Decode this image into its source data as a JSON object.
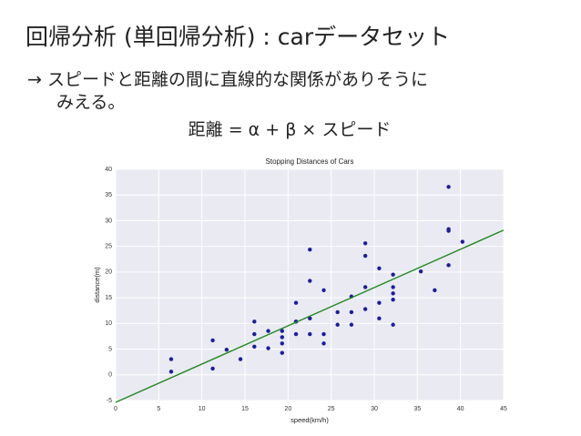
{
  "slide": {
    "title": "回帰分析 (単回帰分析) : carデータセット",
    "body": [
      "→ スピードと距離の間に直線的な関係がありそうに",
      "みえる。"
    ],
    "formula": "距離 = α + β × スピード"
  },
  "chart_data": {
    "type": "scatter",
    "title": "Stopping Distances of Cars",
    "x_label": "speed(km/h)",
    "y_label": "distance(m)",
    "xlim": [
      0,
      45
    ],
    "ylim": [
      -5,
      40
    ],
    "xticks": [
      0,
      5,
      10,
      15,
      20,
      25,
      30,
      35,
      40,
      45
    ],
    "yticks": [
      -5,
      0,
      5,
      10,
      15,
      20,
      25,
      30,
      35,
      40
    ],
    "grid": true,
    "background": "#eaeaf2",
    "series": [
      {
        "type": "scatter",
        "color": "#1c1ca0",
        "x": [
          6.44,
          6.44,
          11.26,
          11.26,
          12.87,
          14.48,
          16.09,
          16.09,
          16.09,
          17.7,
          17.7,
          19.31,
          19.31,
          19.31,
          19.31,
          20.92,
          20.92,
          20.92,
          20.92,
          22.53,
          22.53,
          22.53,
          22.53,
          24.14,
          24.14,
          24.14,
          25.74,
          25.74,
          27.35,
          27.35,
          27.35,
          28.96,
          28.96,
          28.96,
          28.96,
          30.57,
          30.57,
          30.57,
          32.18,
          32.18,
          32.18,
          32.18,
          32.18,
          35.4,
          37.01,
          38.62,
          38.62,
          38.62,
          38.62,
          40.23
        ],
        "values": [
          0.61,
          3.05,
          1.22,
          6.71,
          4.88,
          3.05,
          5.49,
          7.92,
          10.36,
          5.18,
          8.53,
          4.27,
          6.1,
          7.32,
          8.53,
          7.92,
          10.36,
          10.36,
          14.02,
          7.92,
          10.97,
          18.29,
          24.38,
          6.1,
          7.92,
          16.46,
          9.75,
          12.19,
          9.75,
          12.19,
          15.24,
          12.8,
          17.07,
          23.16,
          25.6,
          10.97,
          14.02,
          20.73,
          9.75,
          14.63,
          15.85,
          17.07,
          19.51,
          20.12,
          16.46,
          21.34,
          28.04,
          28.35,
          36.58,
          25.91
        ]
      },
      {
        "type": "line",
        "color": "#1f8a1f",
        "x": [
          0,
          45
        ],
        "values": [
          -5.36,
          28.16
        ]
      }
    ]
  }
}
